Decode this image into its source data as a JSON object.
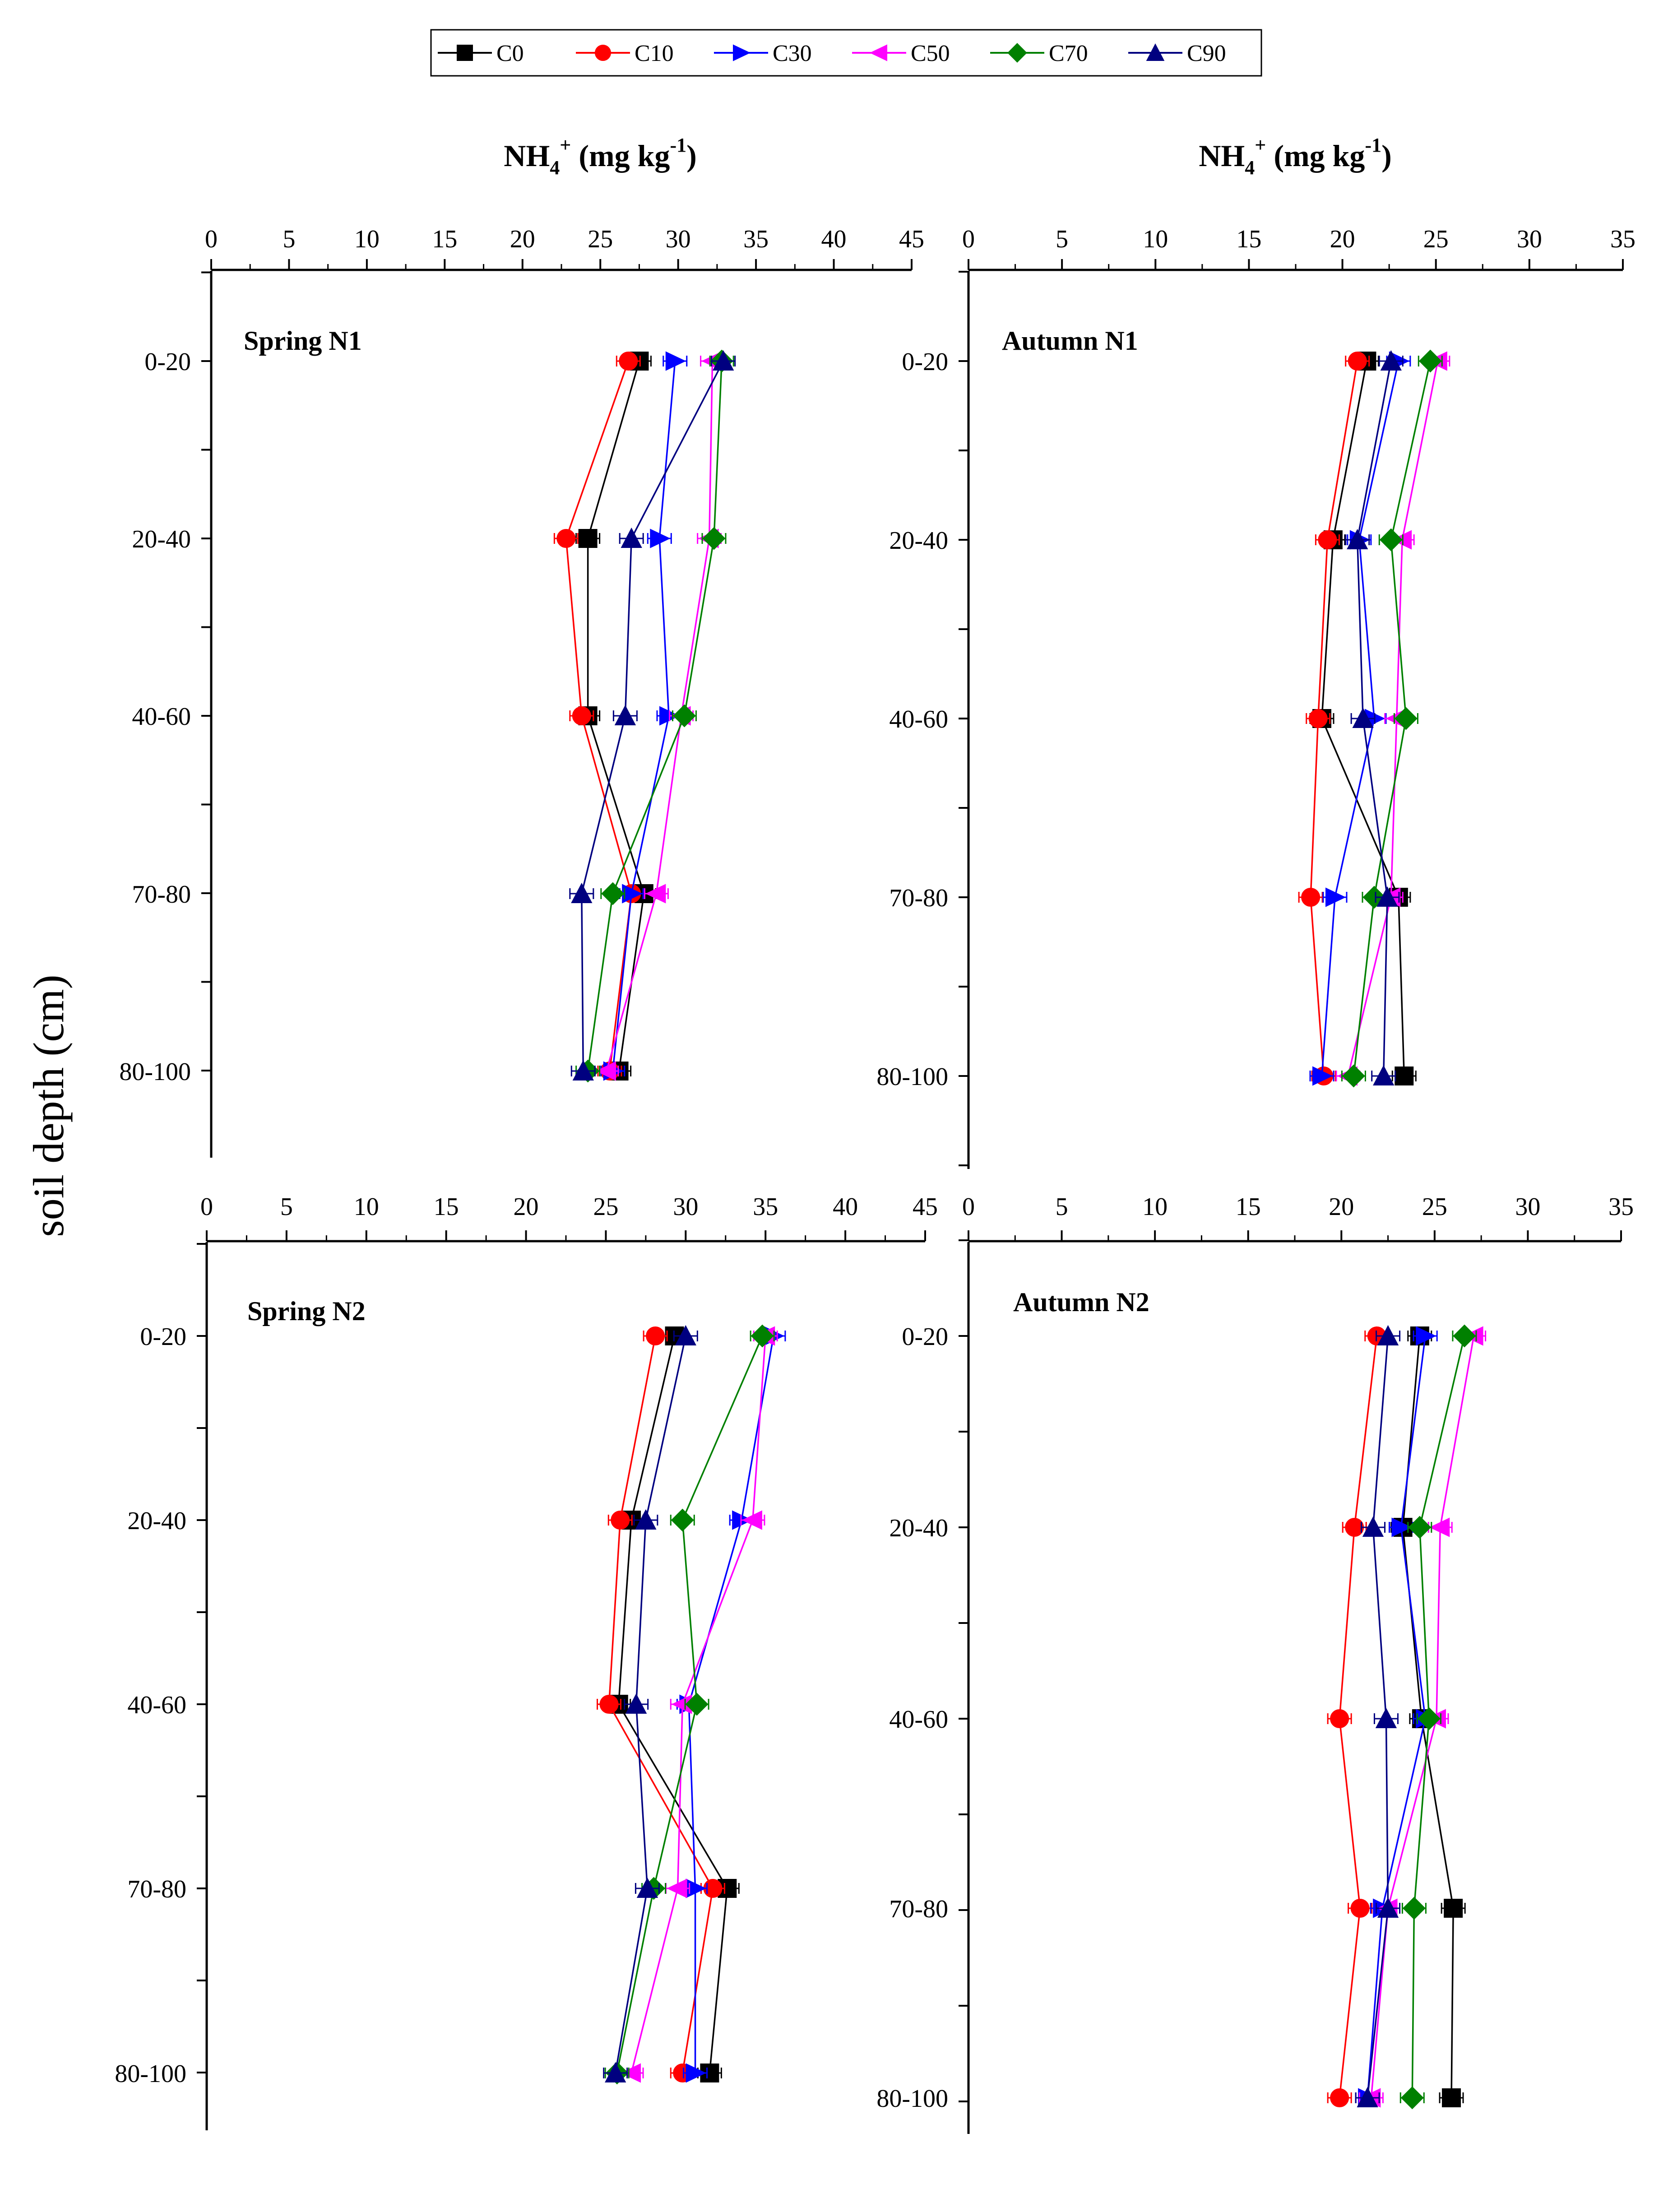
{
  "figure": {
    "y_axis_title": "soil depth (cm)",
    "legend": [
      {
        "name": "C0",
        "color": "#000000",
        "marker": "square"
      },
      {
        "name": "C10",
        "color": "#ff0000",
        "marker": "circle"
      },
      {
        "name": "C30",
        "color": "#0000ff",
        "marker": "triangle-right"
      },
      {
        "name": "C50",
        "color": "#ff00ff",
        "marker": "triangle-left"
      },
      {
        "name": "C70",
        "color": "#008000",
        "marker": "diamond"
      },
      {
        "name": "C90",
        "color": "#000080",
        "marker": "triangle-up"
      }
    ],
    "top_axis_titles": [
      {
        "main": "NH",
        "sub": "4",
        "sup": "+",
        "unit_pre": " (mg kg",
        "unit_sup": "-1",
        "unit_post": ")"
      },
      {
        "main": "NH",
        "sub": "4",
        "sup": "+",
        "unit_pre": " (mg kg",
        "unit_sup": "-1",
        "unit_post": ")"
      }
    ]
  },
  "chart_data": [
    {
      "type": "line",
      "title": "Spring N1",
      "xlabel": "NH4+ (mg kg-1)",
      "ylabel": "soil depth (cm)",
      "xlim": [
        0,
        45
      ],
      "xticks": [
        0,
        5,
        10,
        15,
        20,
        25,
        30,
        35,
        40,
        45
      ],
      "categories": [
        "0-20",
        "20-40",
        "40-60",
        "70-80",
        "80-100"
      ],
      "series": [
        {
          "name": "C0",
          "values": [
            27.5,
            24.2,
            24.2,
            27.8,
            26.2
          ]
        },
        {
          "name": "C10",
          "values": [
            26.8,
            22.8,
            23.8,
            27.0,
            25.6
          ]
        },
        {
          "name": "C30",
          "values": [
            29.8,
            28.8,
            29.4,
            27.0,
            25.8
          ]
        },
        {
          "name": "C50",
          "values": [
            32.2,
            32.0,
            30.2,
            28.6,
            25.4
          ]
        },
        {
          "name": "C70",
          "values": [
            32.8,
            32.3,
            30.4,
            25.8,
            24.2
          ]
        },
        {
          "name": "C90",
          "values": [
            32.9,
            27.0,
            26.6,
            23.8,
            23.9
          ]
        }
      ]
    },
    {
      "type": "line",
      "title": "Autumn N1",
      "xlabel": "NH4+ (mg kg-1)",
      "ylabel": "soil depth (cm)",
      "xlim": [
        0,
        35
      ],
      "xticks": [
        0,
        5,
        10,
        15,
        20,
        25,
        30,
        35
      ],
      "categories": [
        "0-20",
        "20-40",
        "40-60",
        "70-80",
        "80-100"
      ],
      "series": [
        {
          "name": "C0",
          "values": [
            21.3,
            19.5,
            18.9,
            23.0,
            23.3
          ]
        },
        {
          "name": "C10",
          "values": [
            20.8,
            19.2,
            18.7,
            18.3,
            19.0
          ]
        },
        {
          "name": "C30",
          "values": [
            23.0,
            20.9,
            21.7,
            19.6,
            18.9
          ]
        },
        {
          "name": "C50",
          "values": [
            25.1,
            23.2,
            22.9,
            22.6,
            20.3
          ]
        },
        {
          "name": "C70",
          "values": [
            24.7,
            22.6,
            23.4,
            21.7,
            20.6
          ]
        },
        {
          "name": "C90",
          "values": [
            22.6,
            20.8,
            21.1,
            22.4,
            22.2
          ]
        }
      ]
    },
    {
      "type": "line",
      "title": "Spring N2",
      "xlabel": "NH4+ (mg kg-1)",
      "ylabel": "soil depth (cm)",
      "xlim": [
        0,
        45
      ],
      "xticks": [
        0,
        5,
        10,
        15,
        20,
        25,
        30,
        35,
        40,
        45
      ],
      "categories": [
        "0-20",
        "20-40",
        "40-60",
        "70-80",
        "80-100"
      ],
      "series": [
        {
          "name": "C0",
          "values": [
            29.3,
            26.6,
            25.8,
            32.6,
            31.5
          ]
        },
        {
          "name": "C10",
          "values": [
            28.1,
            25.9,
            25.2,
            31.7,
            29.8
          ]
        },
        {
          "name": "C30",
          "values": [
            35.5,
            33.5,
            30.2,
            30.6,
            30.6
          ]
        },
        {
          "name": "C50",
          "values": [
            35.0,
            34.2,
            29.8,
            29.5,
            26.6
          ]
        },
        {
          "name": "C70",
          "values": [
            34.8,
            29.8,
            30.7,
            28.0,
            25.7
          ]
        },
        {
          "name": "C90",
          "values": [
            30.0,
            27.5,
            26.9,
            27.6,
            25.6
          ]
        }
      ]
    },
    {
      "type": "line",
      "title": "Autumn N2",
      "xlabel": "NH4+ (mg kg-1)",
      "ylabel": "soil depth (cm)",
      "xlim": [
        0,
        35
      ],
      "xticks": [
        0,
        5,
        10,
        15,
        20,
        25,
        30,
        35
      ],
      "categories": [
        "0-20",
        "20-40",
        "40-60",
        "70-80",
        "80-100"
      ],
      "series": [
        {
          "name": "C0",
          "values": [
            24.2,
            23.3,
            24.3,
            26.0,
            25.9
          ]
        },
        {
          "name": "C10",
          "values": [
            21.9,
            20.7,
            19.9,
            21.0,
            19.9
          ]
        },
        {
          "name": "C30",
          "values": [
            24.5,
            23.2,
            24.5,
            22.2,
            21.4
          ]
        },
        {
          "name": "C50",
          "values": [
            27.1,
            25.3,
            25.1,
            22.5,
            21.6
          ]
        },
        {
          "name": "C70",
          "values": [
            26.6,
            24.2,
            24.7,
            23.9,
            23.8
          ]
        },
        {
          "name": "C90",
          "values": [
            22.5,
            21.7,
            22.4,
            22.5,
            21.4
          ]
        }
      ]
    }
  ]
}
